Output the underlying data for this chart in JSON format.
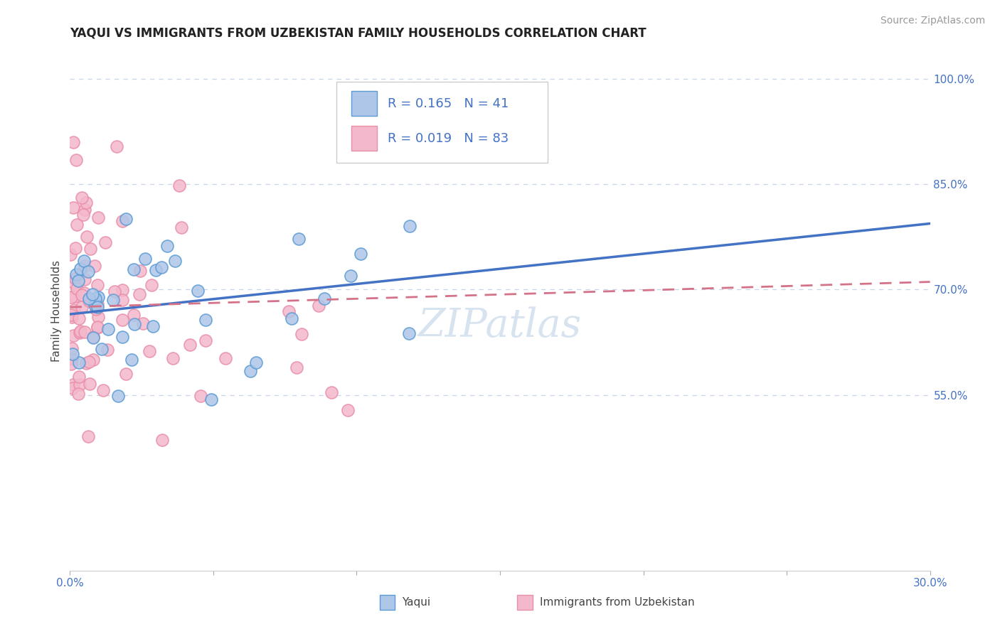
{
  "title": "YAQUI VS IMMIGRANTS FROM UZBEKISTAN FAMILY HOUSEHOLDS CORRELATION CHART",
  "source": "Source: ZipAtlas.com",
  "ylabel": "Family Households",
  "xlim": [
    0.0,
    30.0
  ],
  "ylim": [
    30.0,
    104.0
  ],
  "yaqui_R": 0.165,
  "yaqui_N": 41,
  "uzbek_R": 0.019,
  "uzbek_N": 83,
  "yaqui_color": "#aec6e8",
  "uzbek_color": "#f4b8cc",
  "yaqui_edge_color": "#5b9bd5",
  "uzbek_edge_color": "#e88fa8",
  "yaqui_line_color": "#4472c4",
  "uzbek_line_color": "#d4728a",
  "background_color": "#ffffff",
  "grid_color": "#c8d4e8",
  "watermark": "ZIPatlas",
  "title_fontsize": 12,
  "axis_label_fontsize": 11,
  "tick_fontsize": 11,
  "legend_fontsize": 13,
  "source_fontsize": 10,
  "yaqui_intercept": 66.5,
  "yaqui_slope": 0.43,
  "uzbek_intercept": 67.5,
  "uzbek_slope": 0.12
}
